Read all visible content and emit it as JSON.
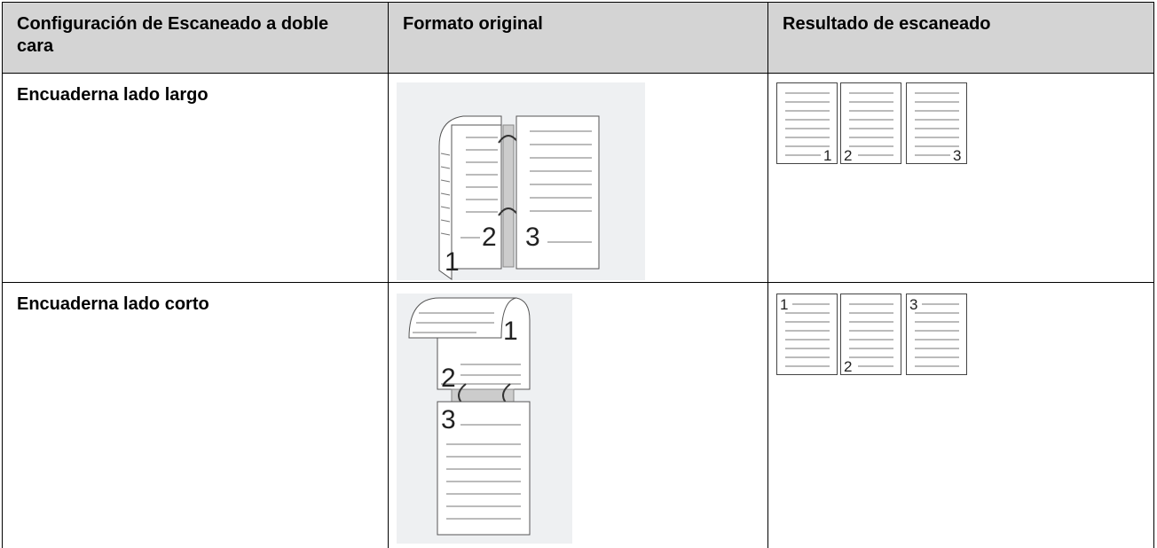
{
  "table": {
    "header": [
      "Configuración de Escaneado a doble cara",
      "Formato original",
      "Resultado de escaneado"
    ],
    "rows": [
      {
        "setting": "Encuaderna lado largo",
        "original_labels": [
          "1",
          "2",
          "3"
        ],
        "result_labels": [
          "1",
          "2",
          "3"
        ]
      },
      {
        "setting": "Encuaderna lado corto",
        "original_labels": [
          "1",
          "2",
          "3"
        ],
        "result_labels": [
          "1",
          "2",
          "3"
        ]
      }
    ]
  }
}
